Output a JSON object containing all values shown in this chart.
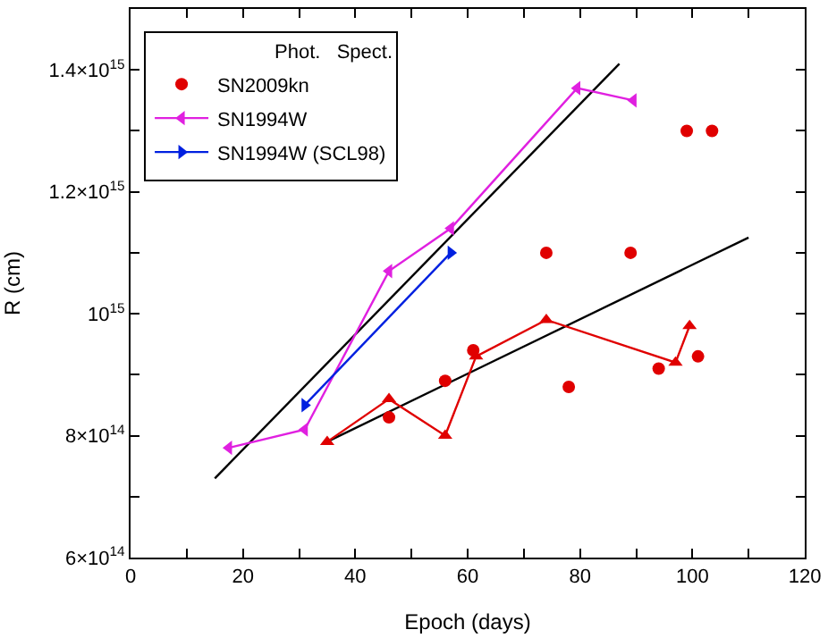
{
  "chart_data": {
    "type": "scatter",
    "xlabel": "Epoch (days)",
    "ylabel": "R (cm)",
    "xlim": [
      0,
      120
    ],
    "ylim": [
      600000000000000.0,
      1500000000000000.0
    ],
    "xticks": [
      0,
      {
        "value": 10,
        "label": null
      },
      20,
      {
        "value": 30,
        "label": null
      },
      40,
      {
        "value": 50,
        "label": null
      },
      60,
      {
        "value": 70,
        "label": null
      },
      80,
      {
        "value": 90,
        "label": null
      },
      100,
      {
        "value": 110,
        "label": null
      },
      120
    ],
    "yticks": [
      {
        "value": 600000000000000.0,
        "label": "6×10$^{14}$"
      },
      {
        "value": 700000000000000.0,
        "label": null
      },
      {
        "value": 800000000000000.0,
        "label": "8×10$^{14}$"
      },
      {
        "value": 900000000000000.0,
        "label": null
      },
      {
        "value": 1000000000000000.0,
        "label": "10$^{15}$"
      },
      {
        "value": 1100000000000000.0,
        "label": null
      },
      {
        "value": 1200000000000000.0,
        "label": "1.2×10$^{15}$"
      },
      {
        "value": 1300000000000000.0,
        "label": null
      },
      {
        "value": 1400000000000000.0,
        "label": "1.4×10$^{15}$"
      }
    ],
    "legend": "top left",
    "annotations": [
      "Phot.",
      "Spect."
    ],
    "series": [
      {
        "type": "line",
        "color": "#000000",
        "marker": "none",
        "x": [
          15,
          87
        ],
        "values": [
          730000000000000.0,
          1410000000000000.0
        ]
      },
      {
        "type": "line",
        "color": "#000000",
        "marker": "none",
        "x": [
          35,
          110
        ],
        "values": [
          790000000000000.0,
          1125000000000000.0
        ]
      },
      {
        "name": "SN2009kn",
        "type": "scatter",
        "color": "#e00000",
        "marker": "circle",
        "x": [
          46,
          56,
          61,
          74,
          78,
          89,
          94,
          99,
          101,
          103.5
        ],
        "values": [
          830000000000000.0,
          890000000000000.0,
          940000000000000.0,
          1100000000000000.0,
          880000000000000.0,
          1100000000000000.0,
          910000000000000.0,
          1300000000000000.0,
          930000000000000.0,
          1300000000000000.0
        ]
      },
      {
        "type": "line",
        "color": "#e00000",
        "marker": "triangle",
        "x": [
          35,
          46,
          56,
          61.5,
          74,
          97,
          99.5
        ],
        "values": [
          790000000000000.0,
          860000000000000.0,
          800000000000000.0,
          930000000000000.0,
          990000000000000.0,
          920000000000000.0,
          980000000000000.0
        ]
      },
      {
        "name": "SN1994W",
        "type": "line",
        "color": "#e020e0",
        "marker": "triangle-left",
        "x": [
          17.5,
          31,
          46,
          57,
          79.5,
          89.5
        ],
        "values": [
          780000000000000.0,
          810000000000000.0,
          1070000000000000.0,
          1140000000000000.0,
          1370000000000000.0,
          1350000000000000.0
        ]
      },
      {
        "name": "SN1994W (SCL98)",
        "type": "line",
        "color": "#0020e0",
        "marker": "triangle-right",
        "x": [
          31,
          57
        ],
        "values": [
          850000000000000.0,
          1100000000000000.0
        ]
      }
    ]
  }
}
